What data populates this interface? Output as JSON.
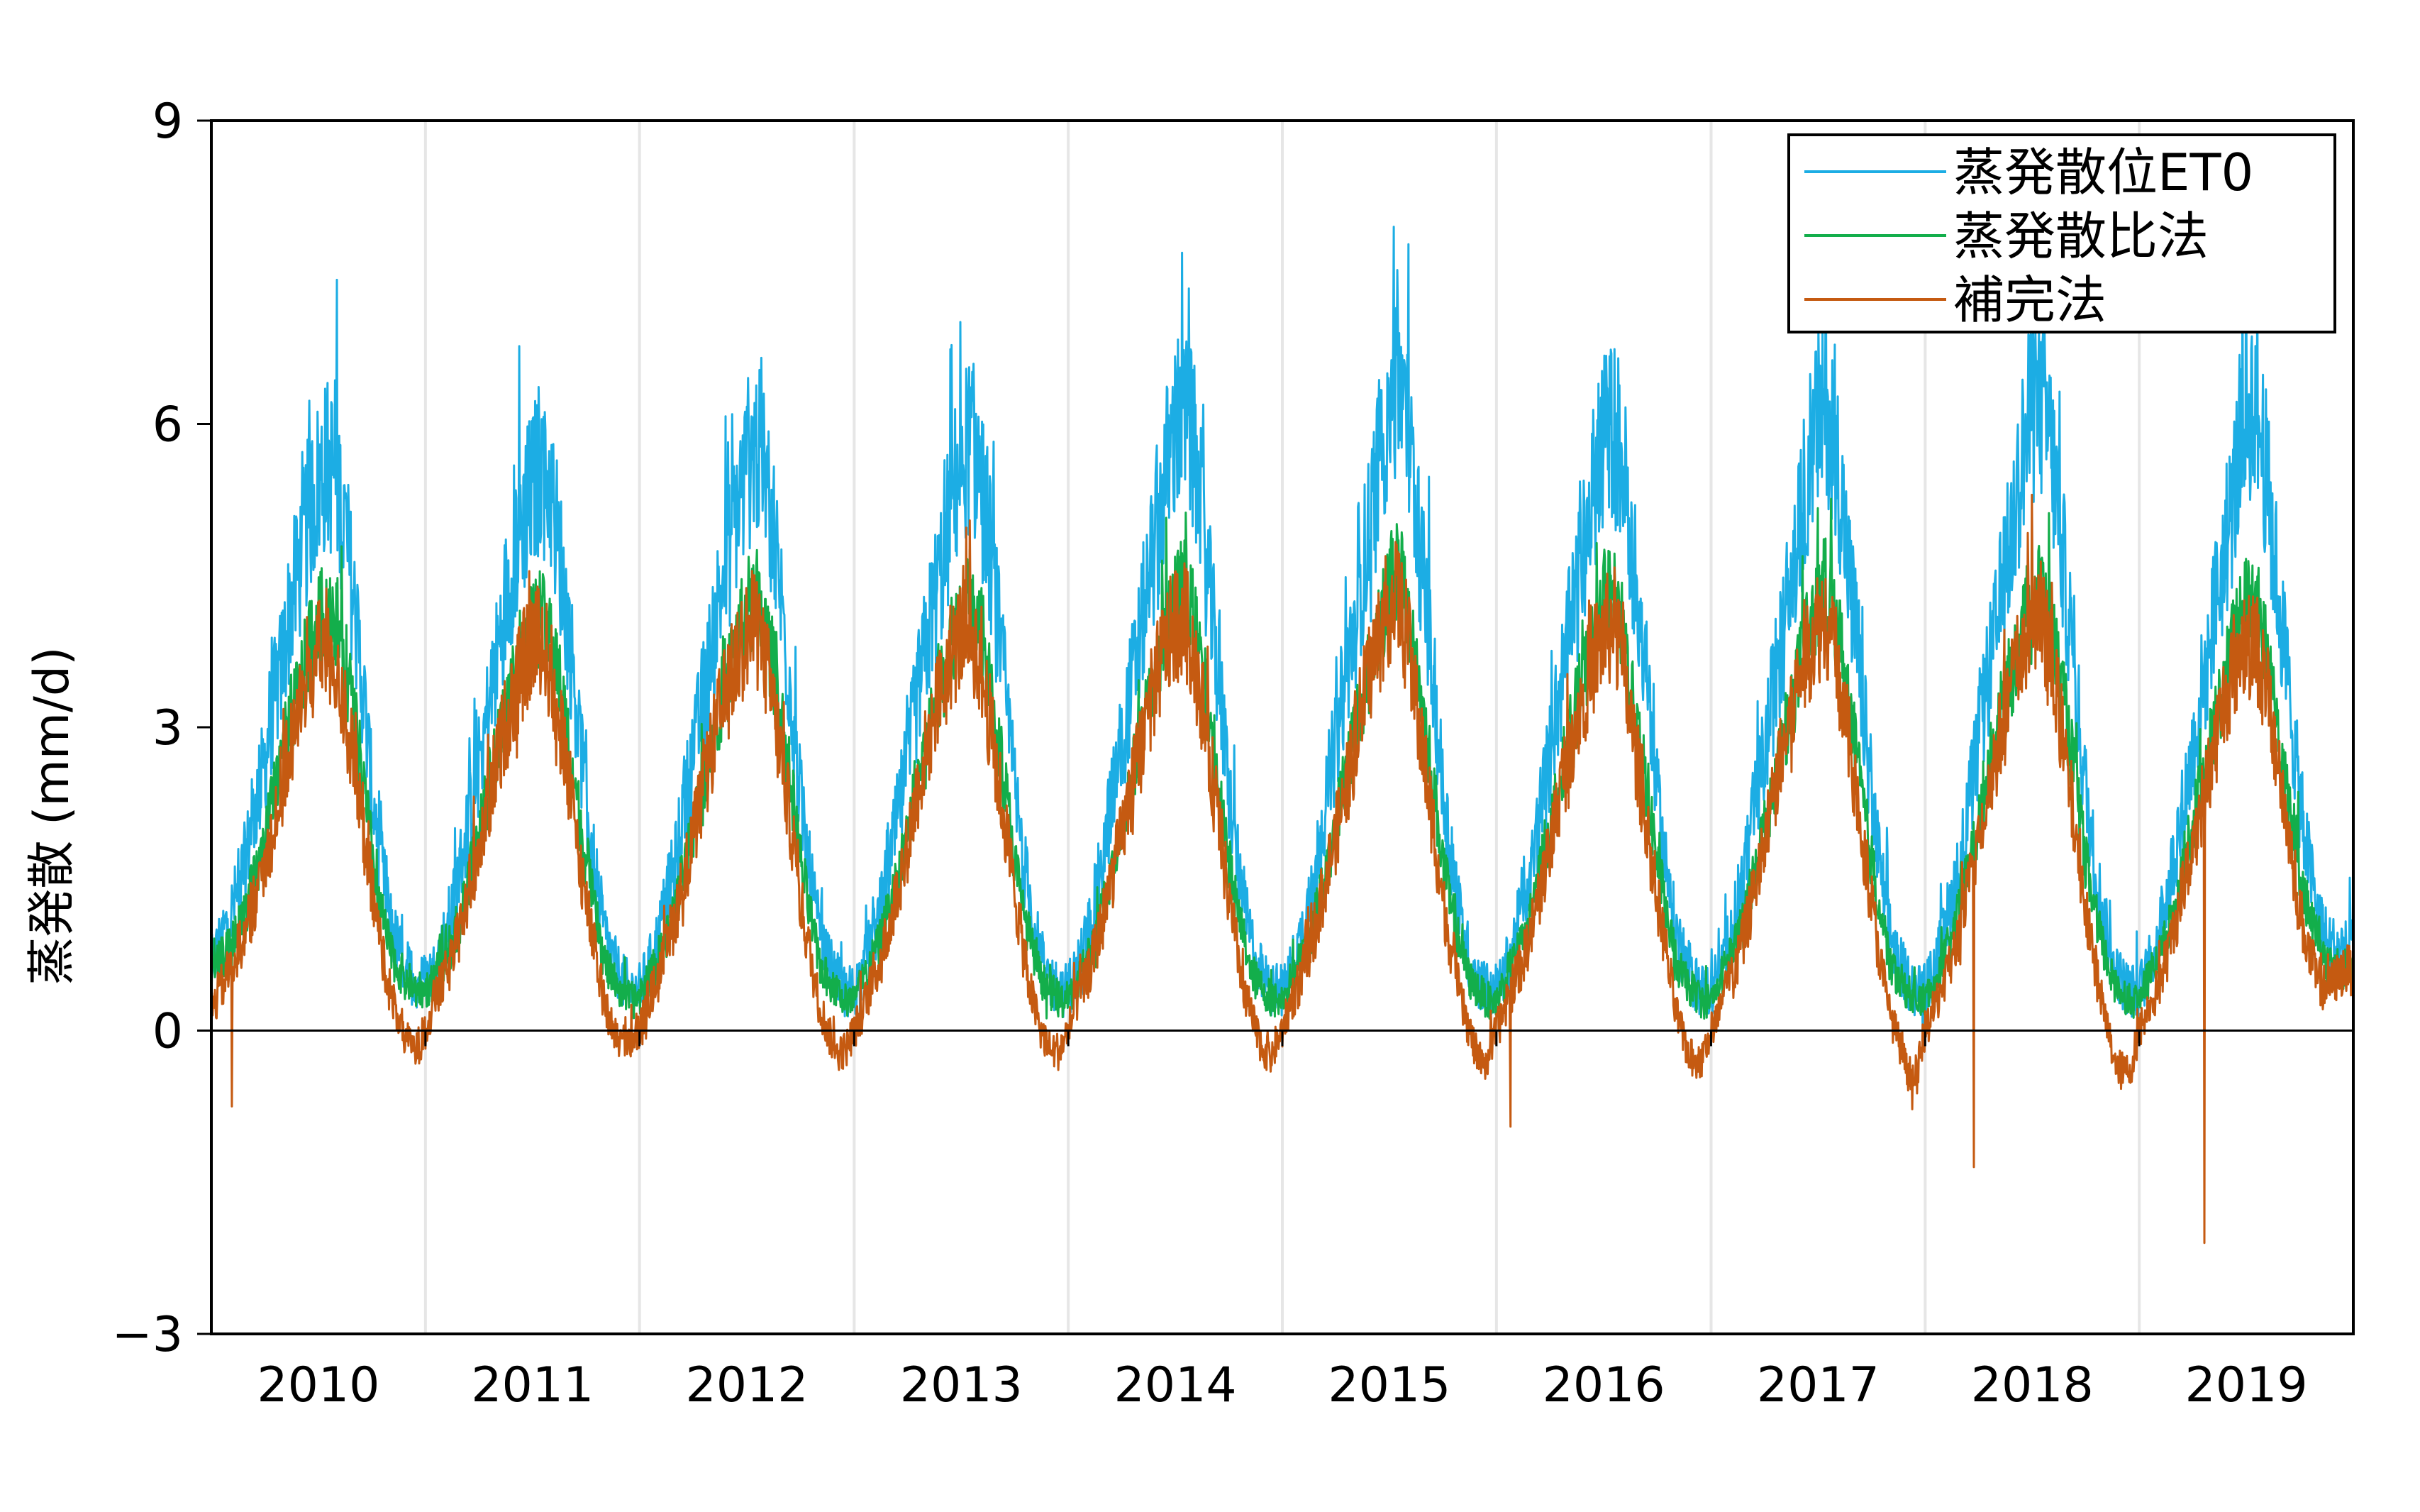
{
  "chart_data": {
    "type": "line",
    "title": "",
    "xlabel": "",
    "ylabel": "蒸発散 (mm/d)",
    "ylim": [
      -3,
      9
    ],
    "yticks": [
      "−3",
      "0",
      "3",
      "6",
      "9"
    ],
    "ytick_values": [
      -3,
      0,
      3,
      6,
      9
    ],
    "x_start_date": "2010-01-01",
    "x_end_date": "2019-12-31",
    "x_tick_labels": [
      "2010",
      "2011",
      "2012",
      "2013",
      "2014",
      "2015",
      "2016",
      "2017",
      "2018",
      "2019"
    ],
    "grid": "vertical year separators",
    "legend_position": "top-right",
    "sampling": "semi-monthly representative daily values (1st and 16th of each month)",
    "series": [
      {
        "name": "蒸発散位ET0",
        "color": "#1CADE4",
        "values": [
          0.6,
          0.9,
          1.1,
          1.4,
          1.7,
          2.2,
          2.6,
          3.2,
          3.6,
          4.2,
          4.6,
          5.1,
          5.4,
          5.6,
          5.5,
          5.0,
          4.2,
          3.4,
          2.4,
          1.7,
          1.1,
          0.8,
          0.6,
          0.5,
          0.5,
          0.6,
          0.9,
          1.2,
          1.6,
          2.1,
          2.6,
          3.1,
          3.6,
          4.2,
          4.7,
          5.1,
          5.3,
          5.6,
          5.4,
          4.8,
          4.0,
          3.2,
          2.3,
          1.6,
          1.0,
          0.7,
          0.5,
          0.4,
          0.4,
          0.6,
          0.9,
          1.3,
          1.6,
          2.2,
          2.7,
          3.2,
          3.7,
          4.3,
          4.7,
          5.2,
          5.5,
          5.8,
          5.5,
          5.0,
          4.1,
          3.3,
          2.3,
          1.6,
          1.0,
          0.7,
          0.5,
          0.4,
          0.4,
          0.6,
          0.9,
          1.2,
          1.6,
          2.1,
          2.6,
          3.2,
          3.7,
          4.2,
          4.6,
          5.2,
          5.6,
          5.8,
          5.6,
          5.0,
          4.1,
          3.3,
          2.4,
          1.7,
          1.1,
          0.7,
          0.5,
          0.4,
          0.4,
          0.6,
          0.9,
          1.3,
          1.7,
          2.3,
          2.8,
          3.3,
          3.8,
          4.4,
          4.9,
          5.5,
          5.9,
          6.1,
          5.8,
          5.1,
          4.2,
          3.4,
          2.4,
          1.7,
          1.1,
          0.7,
          0.5,
          0.4,
          0.4,
          0.6,
          0.9,
          1.3,
          1.7,
          2.3,
          2.8,
          3.4,
          3.9,
          4.5,
          5.0,
          5.7,
          6.2,
          6.6,
          6.0,
          5.2,
          4.3,
          3.4,
          2.4,
          1.7,
          1.1,
          0.7,
          0.5,
          0.4,
          0.4,
          0.6,
          0.9,
          1.3,
          1.6,
          2.2,
          2.7,
          3.3,
          3.8,
          4.3,
          4.8,
          5.4,
          5.8,
          6.0,
          5.7,
          5.0,
          4.1,
          3.3,
          2.3,
          1.6,
          1.0,
          0.7,
          0.5,
          0.4,
          0.4,
          0.6,
          0.9,
          1.3,
          1.6,
          2.2,
          2.7,
          3.3,
          3.8,
          4.4,
          4.9,
          5.6,
          6.0,
          6.2,
          5.8,
          5.0,
          4.1,
          3.3,
          2.3,
          1.6,
          1.0,
          0.7,
          0.5,
          0.4,
          0.4,
          0.6,
          0.9,
          1.3,
          1.6,
          2.2,
          2.8,
          3.4,
          3.9,
          4.5,
          5.0,
          5.7,
          6.1,
          6.2,
          5.9,
          5.1,
          4.2,
          3.3,
          2.4,
          1.7,
          1.1,
          0.7,
          0.5,
          0.4,
          0.4,
          0.6,
          0.9,
          1.3,
          1.7,
          2.2,
          2.7,
          3.3,
          3.8,
          4.4,
          4.9,
          5.5,
          6.0,
          6.3,
          5.7,
          4.9,
          4.0,
          3.2,
          2.3,
          1.7,
          1.2,
          0.9,
          0.8,
          0.8
        ]
      },
      {
        "name": "蒸発散比法",
        "color": "#13AE4B",
        "values": [
          0.5,
          0.7,
          0.8,
          1.0,
          1.2,
          1.5,
          1.8,
          2.3,
          2.7,
          3.1,
          3.4,
          3.8,
          4.0,
          4.2,
          4.1,
          3.7,
          3.1,
          2.5,
          1.8,
          1.2,
          0.8,
          0.6,
          0.5,
          0.4,
          0.4,
          0.5,
          0.7,
          0.9,
          1.1,
          1.5,
          1.9,
          2.3,
          2.7,
          3.1,
          3.5,
          3.8,
          4.0,
          4.1,
          3.9,
          3.5,
          2.9,
          2.3,
          1.7,
          1.2,
          0.7,
          0.5,
          0.4,
          0.3,
          0.3,
          0.5,
          0.7,
          0.9,
          1.2,
          1.6,
          2.0,
          2.4,
          2.8,
          3.2,
          3.5,
          3.9,
          4.1,
          4.2,
          4.0,
          3.6,
          3.0,
          2.4,
          1.7,
          1.2,
          0.7,
          0.5,
          0.4,
          0.3,
          0.3,
          0.5,
          0.7,
          0.9,
          1.2,
          1.5,
          1.9,
          2.4,
          2.8,
          3.2,
          3.5,
          3.9,
          4.1,
          4.3,
          4.1,
          3.6,
          3.0,
          2.4,
          1.7,
          1.2,
          0.8,
          0.5,
          0.4,
          0.3,
          0.3,
          0.5,
          0.7,
          0.9,
          1.2,
          1.6,
          2.0,
          2.4,
          2.8,
          3.2,
          3.6,
          4.0,
          4.2,
          4.4,
          4.1,
          3.6,
          3.0,
          2.4,
          1.7,
          1.2,
          0.8,
          0.5,
          0.4,
          0.3,
          0.3,
          0.5,
          0.7,
          0.9,
          1.2,
          1.6,
          2.0,
          2.5,
          2.9,
          3.3,
          3.6,
          4.1,
          4.4,
          4.6,
          4.2,
          3.7,
          3.0,
          2.4,
          1.7,
          1.2,
          0.8,
          0.5,
          0.4,
          0.3,
          0.3,
          0.5,
          0.7,
          0.9,
          1.2,
          1.6,
          2.0,
          2.4,
          2.8,
          3.2,
          3.5,
          3.9,
          4.2,
          4.3,
          4.0,
          3.5,
          2.9,
          2.3,
          1.7,
          1.2,
          0.7,
          0.5,
          0.4,
          0.3,
          0.3,
          0.5,
          0.7,
          0.9,
          1.2,
          1.6,
          2.0,
          2.4,
          2.8,
          3.2,
          3.6,
          4.0,
          4.2,
          4.4,
          4.1,
          3.6,
          2.9,
          2.3,
          1.7,
          1.2,
          0.7,
          0.5,
          0.4,
          0.3,
          0.3,
          0.5,
          0.7,
          0.9,
          1.2,
          1.6,
          2.0,
          2.5,
          2.9,
          3.3,
          3.6,
          4.0,
          4.3,
          4.4,
          4.1,
          3.6,
          3.0,
          2.4,
          1.7,
          1.2,
          0.8,
          0.5,
          0.4,
          0.3,
          0.3,
          0.5,
          0.7,
          0.9,
          1.2,
          1.6,
          2.0,
          2.4,
          2.8,
          3.2,
          3.6,
          4.0,
          4.2,
          4.3,
          3.9,
          3.4,
          2.8,
          2.2,
          1.6,
          1.2,
          0.9,
          0.7,
          0.6,
          0.6
        ]
      },
      {
        "name": "補完法",
        "color": "#C55A11",
        "values": [
          0.2,
          0.4,
          0.6,
          0.8,
          1.0,
          1.3,
          1.6,
          2.0,
          2.4,
          2.8,
          3.2,
          3.5,
          3.7,
          3.8,
          3.6,
          3.2,
          2.6,
          2.0,
          1.4,
          0.9,
          0.4,
          0.1,
          -0.1,
          -0.2,
          0.0,
          0.3,
          0.5,
          0.7,
          1.0,
          1.4,
          1.8,
          2.2,
          2.6,
          3.0,
          3.3,
          3.6,
          3.8,
          3.9,
          3.6,
          3.1,
          2.5,
          1.9,
          1.3,
          0.8,
          0.3,
          0.0,
          -0.1,
          -0.1,
          0.0,
          0.3,
          0.5,
          0.8,
          1.1,
          1.5,
          1.9,
          2.3,
          2.7,
          3.1,
          3.4,
          3.7,
          3.9,
          4.0,
          3.7,
          3.2,
          2.6,
          2.0,
          1.3,
          0.8,
          0.3,
          0.0,
          -0.2,
          -0.2,
          0.0,
          0.2,
          0.5,
          0.7,
          1.0,
          1.4,
          1.8,
          2.3,
          2.7,
          3.1,
          3.4,
          3.7,
          3.9,
          4.0,
          3.7,
          3.2,
          2.6,
          2.0,
          1.4,
          0.8,
          0.3,
          0.0,
          -0.2,
          -0.2,
          0.0,
          0.3,
          0.5,
          0.8,
          1.1,
          1.5,
          1.9,
          2.3,
          2.7,
          3.1,
          3.5,
          3.8,
          4.0,
          4.1,
          3.8,
          3.3,
          2.6,
          2.0,
          1.3,
          0.8,
          0.3,
          0.0,
          -0.2,
          -0.2,
          0.0,
          0.3,
          0.5,
          0.8,
          1.1,
          1.5,
          1.9,
          2.3,
          2.7,
          3.2,
          3.6,
          3.9,
          4.2,
          4.3,
          3.9,
          3.3,
          2.6,
          2.0,
          1.3,
          0.8,
          0.3,
          0.0,
          -0.3,
          -0.3,
          0.0,
          0.2,
          0.5,
          0.7,
          1.0,
          1.4,
          1.8,
          2.3,
          2.7,
          3.1,
          3.4,
          3.7,
          3.9,
          4.0,
          3.7,
          3.1,
          2.5,
          1.9,
          1.3,
          0.8,
          0.2,
          -0.1,
          -0.3,
          -0.3,
          0.0,
          0.2,
          0.5,
          0.7,
          1.0,
          1.4,
          1.8,
          2.3,
          2.7,
          3.1,
          3.5,
          3.8,
          4.0,
          4.1,
          3.7,
          3.2,
          2.5,
          1.9,
          1.3,
          0.7,
          0.2,
          -0.1,
          -0.4,
          -0.5,
          0.0,
          0.2,
          0.5,
          0.7,
          1.0,
          1.4,
          1.9,
          2.3,
          2.7,
          3.1,
          3.5,
          3.8,
          4.0,
          4.1,
          3.7,
          3.2,
          2.5,
          1.9,
          1.3,
          0.7,
          0.2,
          -0.2,
          -0.4,
          -0.4,
          0.0,
          0.2,
          0.4,
          0.7,
          1.0,
          1.4,
          1.8,
          2.2,
          2.6,
          3.0,
          3.4,
          3.7,
          3.9,
          3.9,
          3.5,
          3.0,
          2.4,
          1.8,
          1.2,
          0.8,
          0.5,
          0.4,
          0.5,
          0.6
        ]
      }
    ],
    "annotations": [
      {
        "series": "蒸発散位ET0",
        "date": "2015-07-10",
        "y": 7.95
      },
      {
        "series": "補完法",
        "date": "2019-04-22",
        "y": -2.1
      },
      {
        "series": "補完法",
        "date": "2018-03-25",
        "y": -1.35
      },
      {
        "series": "補完法",
        "date": "2016-01-25",
        "y": -0.95
      },
      {
        "series": "補完法",
        "date": "2010-02-05",
        "y": -0.75
      }
    ]
  }
}
